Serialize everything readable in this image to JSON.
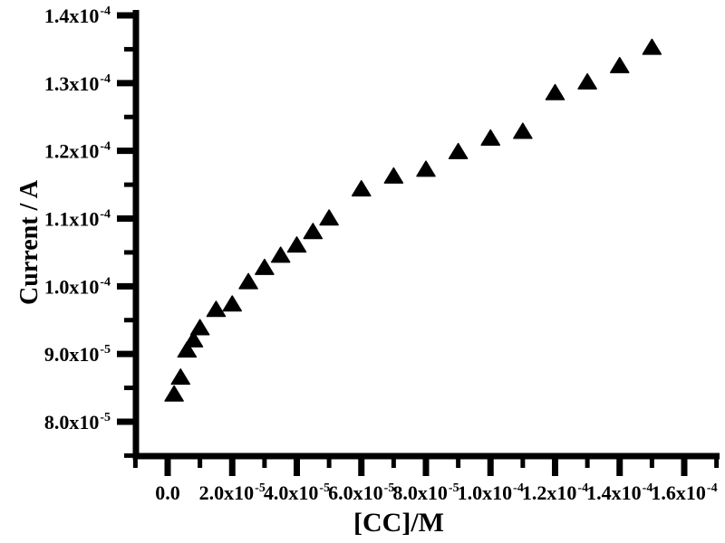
{
  "chart_data": {
    "type": "scatter",
    "title": "",
    "xlabel": "[CC]/M",
    "ylabel": "Current / A",
    "legend": false,
    "grid": false,
    "marker": "filled-up-triangle",
    "marker_color": "#000000",
    "axis_color": "#000000",
    "background_color": "#ffffff",
    "xlim": [
      -1e-05,
      0.00017
    ],
    "ylim": [
      7.3e-05,
      0.000142
    ],
    "x": [
      2e-06,
      4e-06,
      6e-06,
      8e-06,
      1e-05,
      1.5e-05,
      2e-05,
      2.5e-05,
      3e-05,
      3.5e-05,
      4e-05,
      4.5e-05,
      5e-05,
      6e-05,
      7e-05,
      8e-05,
      9e-05,
      0.0001,
      0.00011,
      0.00012,
      0.00013,
      0.00014,
      0.00015
    ],
    "y": [
      8.4e-05,
      8.65e-05,
      9.05e-05,
      9.2e-05,
      9.38e-05,
      9.65e-05,
      9.73e-05,
      0.0001006,
      0.0001027,
      0.0001045,
      0.000106,
      0.000108,
      0.00011,
      0.0001143,
      0.0001162,
      0.0001172,
      0.0001198,
      0.0001218,
      0.0001228,
      0.0001285,
      0.0001301,
      0.0001325,
      0.0001352
    ],
    "x_ticks": [
      {
        "base": "0.0",
        "exp": "",
        "value": 0
      },
      {
        "base": "2.0x10",
        "exp": "-5",
        "value": 2e-05
      },
      {
        "base": "4.0x10",
        "exp": "-5",
        "value": 4e-05
      },
      {
        "base": "6.0x10",
        "exp": "-5",
        "value": 6e-05
      },
      {
        "base": "8.0x10",
        "exp": "-5",
        "value": 8e-05
      },
      {
        "base": "1.0x10",
        "exp": "-4",
        "value": 0.0001
      },
      {
        "base": "1.2x10",
        "exp": "-4",
        "value": 0.00012
      },
      {
        "base": "1.4x10",
        "exp": "-4",
        "value": 0.00014
      },
      {
        "base": "1.6x10",
        "exp": "-4",
        "value": 0.00016
      }
    ],
    "y_ticks": [
      {
        "base": "1.4x10",
        "exp": "-4",
        "value": 0.00014
      },
      {
        "base": "1.3x10",
        "exp": "-4",
        "value": 0.00013
      },
      {
        "base": "1.2x10",
        "exp": "-4",
        "value": 0.00012
      },
      {
        "base": "1.1x10",
        "exp": "-4",
        "value": 0.00011
      },
      {
        "base": "1.0x10",
        "exp": "-4",
        "value": 0.0001
      },
      {
        "base": "9.0x10",
        "exp": "-5",
        "value": 9e-05
      },
      {
        "base": "8.0x10",
        "exp": "-5",
        "value": 8e-05
      }
    ],
    "x_minor_step": 1e-05,
    "y_minor_step": 5e-06
  }
}
